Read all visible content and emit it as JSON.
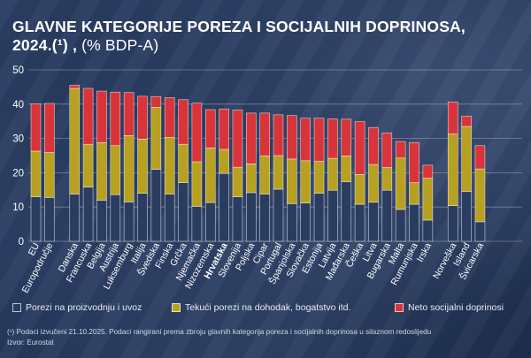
{
  "title": {
    "main": "GLAVNE KATEGORIJE POREZA I SOCIJALNIH DOPRINOSA, 2024.(¹) ,",
    "unit": "(% BDP-A)"
  },
  "legend": [
    {
      "label": "Porezi na proizvodnju i uvoz",
      "color": "#2a3d60"
    },
    {
      "label": "Tekući porezi na dohodak, bogatstvo itd.",
      "color": "#b8a020"
    },
    {
      "label": "Neto socijalni doprinosi",
      "color": "#d9343a"
    }
  ],
  "footnote": "(¹) Podaci izvučeni 21.10.2025. Podaci rangirani prema zbroju glavnih kategorija poreza i socijalnih doprinosa u silaznom redoslijedu",
  "source": "Izvor: Eurostat",
  "chart_data": {
    "type": "bar",
    "stacked": true,
    "ylim": [
      0,
      50
    ],
    "yticks": [
      0,
      10,
      20,
      30,
      40,
      50
    ],
    "highlight": "Hrvatska",
    "categories": [
      "EU",
      "Europodručje",
      "Danska",
      "Francuska",
      "Belgija",
      "Austrija",
      "Luksemburg",
      "Italija",
      "Švedska",
      "Finska",
      "Grčka",
      "Njemačka",
      "Nizozemska",
      "Hrvatska",
      "Slovenija",
      "Poljska",
      "Cipar",
      "Portugal",
      "Španjolska",
      "Slovačka",
      "Estonija",
      "Latvija",
      "Mađarska",
      "Češka",
      "Litva",
      "Bugarska",
      "Malta",
      "Rumunjska",
      "Irska",
      "Norveška",
      "Island",
      "Švicarska"
    ],
    "groups": [
      2,
      27,
      3
    ],
    "series": [
      {
        "name": "Porezi na proizvodnju i uvoz",
        "color": "#2a3d60",
        "values": [
          13.0,
          12.8,
          13.8,
          15.8,
          12.0,
          13.6,
          11.5,
          14.0,
          21.0,
          13.8,
          17.1,
          10.2,
          11.3,
          19.8,
          13.0,
          14.2,
          13.8,
          15.2,
          11.0,
          11.2,
          14.0,
          14.9,
          17.4,
          10.8,
          11.4,
          14.9,
          9.3,
          10.8,
          6.2,
          10.4,
          14.5,
          5.7
        ]
      },
      {
        "name": "Tekući porezi na dohodak, bogatstvo itd.",
        "color": "#b8a020",
        "values": [
          13.3,
          13.1,
          30.8,
          12.5,
          16.8,
          14.3,
          19.3,
          15.8,
          18.1,
          16.5,
          11.2,
          13.0,
          15.9,
          7.0,
          8.6,
          8.4,
          11.1,
          9.8,
          13.0,
          12.3,
          9.3,
          9.3,
          7.5,
          8.7,
          11.0,
          6.6,
          15.0,
          6.3,
          12.2,
          20.9,
          19.0,
          15.4
        ]
      },
      {
        "name": "Neto socijalni doprinosi",
        "color": "#d9343a",
        "values": [
          13.8,
          14.3,
          0.9,
          16.3,
          15.0,
          15.6,
          12.6,
          12.5,
          3.1,
          11.6,
          13.0,
          17.1,
          11.2,
          11.8,
          16.7,
          14.8,
          12.5,
          11.9,
          12.7,
          12.4,
          12.6,
          11.5,
          10.7,
          15.4,
          10.8,
          10.1,
          4.8,
          11.7,
          3.8,
          9.3,
          3.0,
          6.8
        ]
      }
    ]
  }
}
